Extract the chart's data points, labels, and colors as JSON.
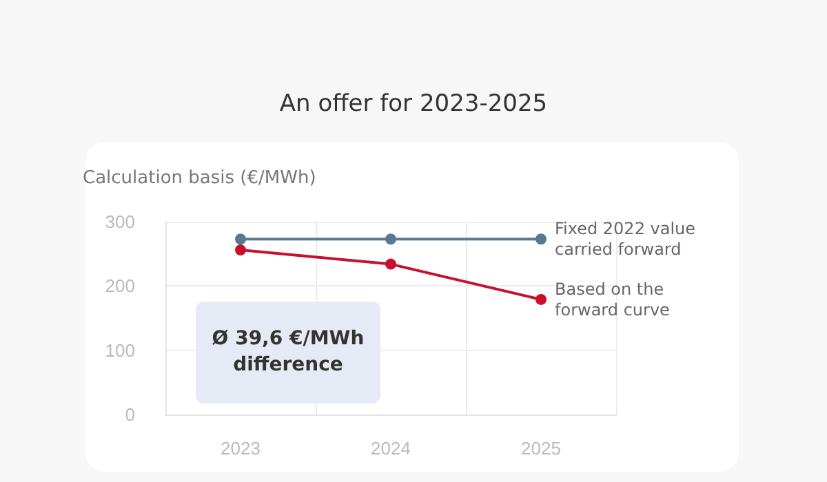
{
  "chart_data": {
    "type": "line",
    "title": "An offer for 2023-2025",
    "ylabel": "Calculation basis (€/MWh)",
    "categories": [
      "2023",
      "2024",
      "2025"
    ],
    "series": [
      {
        "name": "Fixed 2022 value carried forward",
        "color": "#587a8f",
        "values": [
          273,
          273,
          273
        ]
      },
      {
        "name": "Based on the forward curve",
        "color": "#c8102e",
        "values": [
          256,
          234,
          179
        ]
      }
    ],
    "ylim": [
      0,
      300
    ],
    "yticks": [
      0,
      100,
      200,
      300
    ],
    "grid": true,
    "marker": "circle",
    "line_style": "solid",
    "annotations": [
      "Ø 39,6 €/MWh difference"
    ]
  }
}
